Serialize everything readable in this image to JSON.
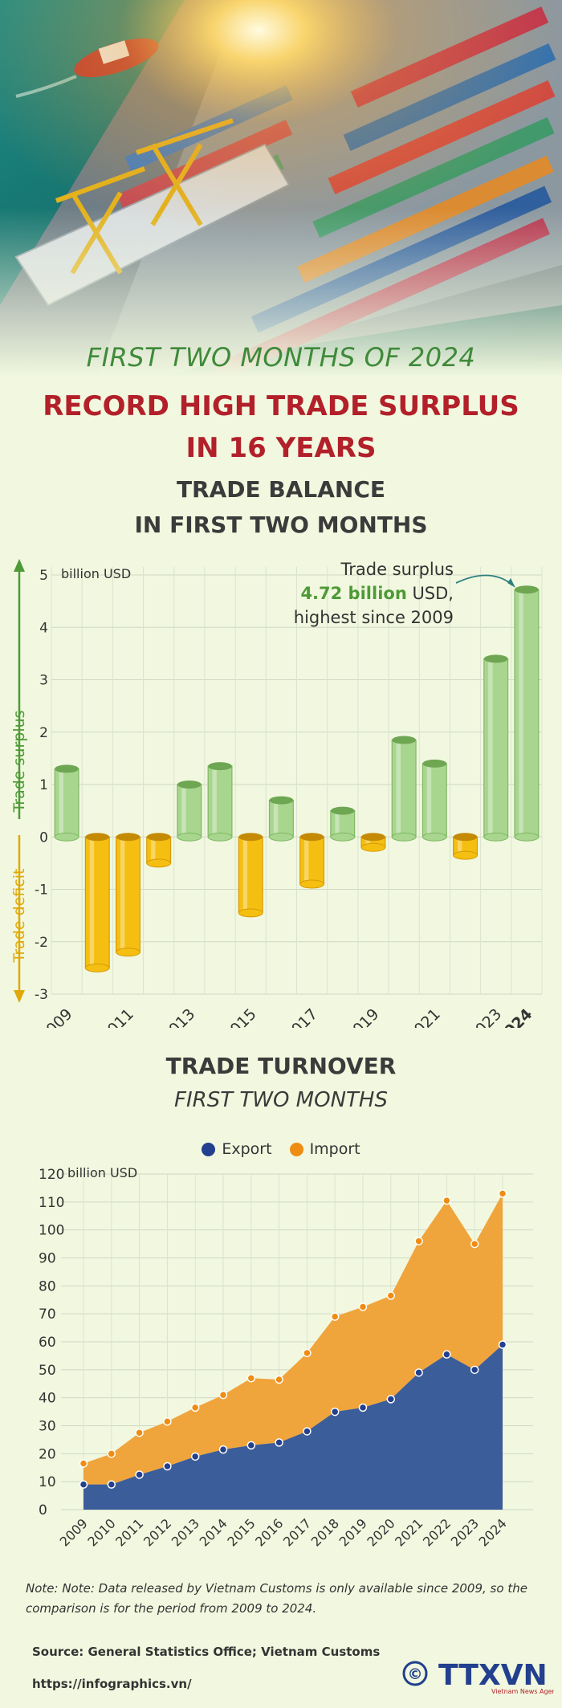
{
  "header": {
    "kicker": "FIRST TWO MONTHS OF 2024",
    "headline": "RECORD HIGH TRADE SURPLUS\nIN 16 YEARS"
  },
  "colors": {
    "background": "#f1f8df",
    "surplus_bar": "#a9d68f",
    "deficit_bar": "#f4bf11",
    "export": "#3b5d99",
    "import": "#f0a43c",
    "headline": "#b2202a",
    "kicker": "#3f8a3a"
  },
  "balance_section": {
    "title": "TRADE BALANCE\nIN FIRST TWO MONTHS",
    "surplus_axis_label": "Trade surplus",
    "deficit_axis_label": "Trade deficit",
    "annotation": {
      "line1": "Trade surplus",
      "value": "4.72 billion",
      "unit": " USD,",
      "line3": "highest since 2009"
    }
  },
  "turnover_section": {
    "title": "TRADE TURNOVER",
    "subtitle": "FIRST TWO MONTHS"
  },
  "chart_data": [
    {
      "type": "bar",
      "ylabel": "billion USD",
      "ylim": [
        -3,
        5
      ],
      "yticks": [
        -3,
        -2,
        -1,
        0,
        1,
        2,
        3,
        4,
        5
      ],
      "grid": true,
      "categories": [
        "2009",
        "2010",
        "2011",
        "2012",
        "2013",
        "2014",
        "2015",
        "2016",
        "2017",
        "2018",
        "2019",
        "2020",
        "2021",
        "2022",
        "2023",
        "2024"
      ],
      "tick_labels": [
        "2009",
        "",
        "2011",
        "",
        "2013",
        "",
        "2015",
        "",
        "2017",
        "",
        "2019",
        "",
        "2021",
        "",
        "2023",
        "2024"
      ],
      "values": [
        1.3,
        -2.5,
        -2.2,
        -0.5,
        1.0,
        1.35,
        -1.45,
        0.7,
        -0.9,
        0.5,
        -0.2,
        1.85,
        1.4,
        -0.35,
        3.4,
        4.72
      ]
    },
    {
      "type": "area",
      "ylabel": "billion USD",
      "ylim": [
        0,
        120
      ],
      "yticks": [
        0,
        10,
        20,
        30,
        40,
        50,
        60,
        70,
        80,
        90,
        100,
        110,
        120
      ],
      "grid": true,
      "legend": "top-center",
      "x": [
        "2009",
        "2010",
        "2011",
        "2012",
        "2013",
        "2014",
        "2015",
        "2016",
        "2017",
        "2018",
        "2019",
        "2020",
        "2021",
        "2022",
        "2023",
        "2024"
      ],
      "series": [
        {
          "name": "Export",
          "values": [
            9,
            9,
            12.5,
            15.5,
            19,
            21.5,
            23,
            24,
            28,
            35,
            36.5,
            39.5,
            49,
            55.5,
            50,
            59
          ]
        },
        {
          "name": "Import",
          "values": [
            7.5,
            11,
            15,
            16,
            17.5,
            19.5,
            24,
            22.5,
            28,
            34,
            36,
            37,
            47,
            55,
            45,
            54
          ]
        }
      ]
    }
  ],
  "footer": {
    "note": "Note: Note: Data released by Vietnam Customs is only available since 2009, so the comparison is for the period from 2009 to 2024.",
    "source": "Source: General Statistics Office; Vietnam Customs",
    "url": "https://infographics.vn/",
    "logo_copyright": "©",
    "logo_text": "TTXVN",
    "logo_subtext": "Vietnam News Agency"
  }
}
